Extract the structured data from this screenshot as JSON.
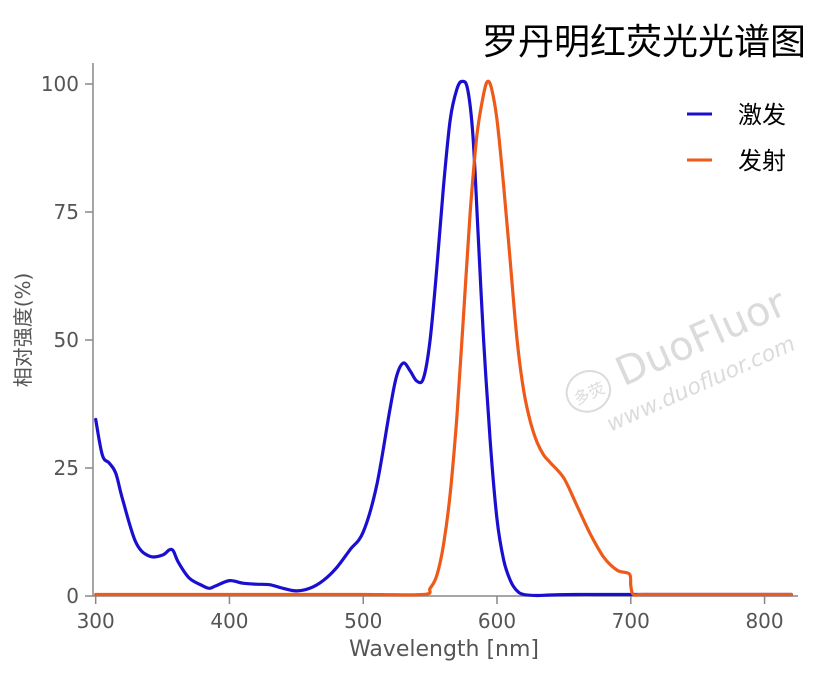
{
  "chart_data": {
    "type": "line",
    "title": "罗丹明红荧光光谱图",
    "xlabel": "Wavelength [nm]",
    "ylabel": "相对强度(%)",
    "xlim": [
      298,
      825
    ],
    "ylim": [
      0,
      100
    ],
    "xticks": [
      300,
      400,
      500,
      600,
      700,
      800
    ],
    "yticks": [
      0,
      25,
      50,
      75,
      100
    ],
    "xtick_labels": [
      "300",
      "400",
      "500",
      "600",
      "700",
      "800"
    ],
    "ytick_labels": [
      "0",
      "25",
      "50",
      "75",
      "100"
    ],
    "grid": false,
    "legend_position": "top-right",
    "series": [
      {
        "name": "激发",
        "color": "#1a0fd0",
        "x": [
          300,
          305,
          310,
          315,
          320,
          330,
          340,
          350,
          355,
          358,
          362,
          370,
          380,
          385,
          390,
          400,
          410,
          420,
          430,
          440,
          450,
          460,
          470,
          480,
          490,
          500,
          510,
          520,
          525,
          530,
          535,
          540,
          545,
          550,
          555,
          560,
          565,
          570,
          574,
          578,
          582,
          586,
          590,
          595,
          600,
          605,
          610,
          615,
          620,
          630,
          640,
          660,
          680,
          700,
          720,
          740,
          760,
          780,
          800,
          820
        ],
        "y": [
          34.5,
          27.5,
          26.0,
          24.0,
          19.0,
          10.5,
          7.8,
          8.0,
          9.0,
          8.8,
          6.5,
          3.5,
          2.0,
          1.5,
          2.0,
          3.0,
          2.5,
          2.3,
          2.2,
          1.5,
          1.0,
          1.5,
          3.0,
          5.5,
          9.0,
          12.5,
          21.5,
          36.5,
          43.0,
          45.5,
          44.0,
          42.0,
          42.5,
          50.0,
          64.0,
          80.0,
          93.0,
          99.0,
          100.5,
          99.0,
          90.0,
          70.0,
          50.0,
          30.0,
          15.0,
          7.0,
          3.0,
          1.0,
          0.3,
          0.1,
          0.2,
          0.3,
          0.3,
          0.3,
          0.3,
          0.3,
          0.3,
          0.3,
          0.3,
          0.3
        ]
      },
      {
        "name": "发射",
        "color": "#ee5a1a",
        "x": [
          300,
          400,
          500,
          545,
          550,
          555,
          560,
          565,
          570,
          575,
          580,
          585,
          590,
          593,
          596,
          600,
          605,
          610,
          615,
          620,
          625,
          630,
          635,
          640,
          650,
          660,
          670,
          680,
          690,
          699,
          700,
          702,
          710,
          750,
          800,
          820
        ],
        "y": [
          0.3,
          0.3,
          0.3,
          0.3,
          1.5,
          4.0,
          10.0,
          20.0,
          35.0,
          55.0,
          75.0,
          90.0,
          98.0,
          100.5,
          99.0,
          93.0,
          80.0,
          65.0,
          50.0,
          40.0,
          34.0,
          30.0,
          27.5,
          26.0,
          23.0,
          17.5,
          12.0,
          7.5,
          5.0,
          4.3,
          2.0,
          0.3,
          0.3,
          0.3,
          0.3,
          0.3
        ]
      }
    ]
  },
  "watermark": {
    "brand": "DuoFluor",
    "seal": "多荧",
    "url": "www.duofluor.com"
  }
}
